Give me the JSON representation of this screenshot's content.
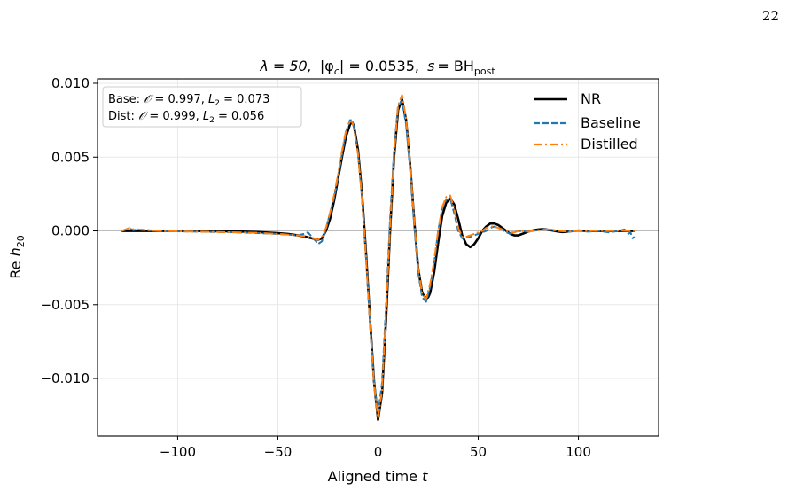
{
  "page_number": "22",
  "chart_data": {
    "type": "line",
    "title": "λ = 50, |φc| = 0.0535, s = BHpost",
    "title_parts": {
      "lambda": "λ = 50,",
      "phi": "|φ",
      "phi_sub": "c",
      "phi_rest": "| = 0.0535,",
      "s": "s",
      "s_rest": "= BH",
      "s_sub": "post"
    },
    "xlabel": "Aligned time t",
    "xlabel_parts": {
      "main": "Aligned time ",
      "var": "t"
    },
    "ylabel": "Re h20",
    "ylabel_parts": {
      "main": "Re ",
      "var": "h",
      "sub": "20"
    },
    "xlim": [
      -140,
      140
    ],
    "ylim": [
      -0.0139,
      0.0103
    ],
    "xticks": [
      -100,
      -50,
      0,
      50,
      100
    ],
    "xtick_labels": [
      "−100",
      "−50",
      "0",
      "50",
      "100"
    ],
    "yticks": [
      0.01,
      0.005,
      0.0,
      -0.005,
      -0.01
    ],
    "ytick_labels": [
      "0.010",
      "0.005",
      "0.000",
      "−0.005",
      "−0.010"
    ],
    "grid": true,
    "legend_position": "top-right",
    "metrics_box": {
      "lines": [
        "Base: 𝒪 = 0.997, L2 = 0.073",
        "Dist: 𝒪 = 0.999, L2 = 0.056"
      ],
      "parts": [
        {
          "prefix": "Base: ",
          "O": "𝒪",
          "o_val": " = 0.997, ",
          "L": "L",
          "L_sub": "2",
          "l_val": " = 0.073"
        },
        {
          "prefix": "Dist: ",
          "O": "𝒪",
          "o_val": " = 0.999, ",
          "L": "L",
          "L_sub": "2",
          "l_val": " = 0.056"
        }
      ]
    },
    "colors": {
      "NR": "#000000",
      "Baseline": "#1f77b4",
      "Distilled": "#ff7f0e"
    },
    "series": [
      {
        "name": "NR",
        "style": "solid",
        "x": [
          -128,
          -120,
          -110,
          -100,
          -90,
          -80,
          -70,
          -60,
          -50,
          -45,
          -40,
          -36,
          -33,
          -30,
          -28,
          -26,
          -24,
          -22,
          -20,
          -18,
          -16,
          -14,
          -13,
          -12,
          -10,
          -8,
          -6,
          -4,
          -2,
          0,
          2,
          4,
          6,
          8,
          10,
          12,
          14,
          16,
          18,
          20,
          22,
          24,
          25,
          26,
          28,
          30,
          32,
          34,
          36,
          38,
          40,
          42,
          44,
          46,
          48,
          50,
          52,
          54,
          56,
          58,
          60,
          62,
          64,
          66,
          68,
          70,
          72,
          74,
          76,
          78,
          80,
          82,
          84,
          86,
          88,
          90,
          92,
          94,
          96,
          98,
          100,
          105,
          110,
          115,
          120,
          125,
          128
        ],
        "y": [
          0.0,
          0.0,
          0.0,
          0.0,
          0.0,
          -2e-05,
          -4e-05,
          -8e-05,
          -0.00015,
          -0.0002,
          -0.0003,
          -0.0004,
          -0.0005,
          -0.0006,
          -0.0005,
          0.0,
          0.0008,
          0.002,
          0.0035,
          0.005,
          0.0064,
          0.0072,
          0.0074,
          0.0071,
          0.0055,
          0.0025,
          -0.0015,
          -0.006,
          -0.0102,
          -0.0128,
          -0.011,
          -0.006,
          0.0,
          0.005,
          0.0082,
          0.0089,
          0.0075,
          0.0045,
          0.0008,
          -0.0025,
          -0.0042,
          -0.0046,
          -0.0045,
          -0.0042,
          -0.0028,
          -0.0008,
          0.001,
          0.0019,
          0.0022,
          0.0018,
          0.0008,
          -0.0003,
          -0.0009,
          -0.0011,
          -0.0009,
          -0.0005,
          0.0,
          0.0003,
          0.0005,
          0.0005,
          0.0004,
          0.0002,
          0.0,
          -0.0002,
          -0.0003,
          -0.0003,
          -0.0002,
          -0.0001,
          0.0,
          5e-05,
          0.0001,
          0.00012,
          0.0001,
          5e-05,
          0.0,
          -5e-05,
          -8e-05,
          -6e-05,
          -3e-05,
          0.0,
          2e-05,
          0.0,
          -1e-05,
          0.0,
          0.0,
          0.0,
          0.0
        ]
      },
      {
        "name": "Baseline",
        "style": "dashed",
        "x": [
          -128,
          -124,
          -122,
          -120,
          -110,
          -100,
          -90,
          -80,
          -70,
          -60,
          -50,
          -45,
          -40,
          -37,
          -35,
          -33,
          -31,
          -30,
          -28,
          -26,
          -24,
          -22,
          -20,
          -18,
          -16,
          -14,
          -13,
          -12,
          -10,
          -8,
          -6,
          -4,
          -2,
          0,
          2,
          4,
          6,
          8,
          10,
          12,
          14,
          16,
          18,
          20,
          22,
          24,
          26,
          28,
          30,
          32,
          34,
          36,
          38,
          40,
          42,
          44,
          46,
          48,
          50,
          52,
          54,
          56,
          58,
          60,
          62,
          64,
          66,
          68,
          70,
          75,
          80,
          85,
          90,
          95,
          100,
          105,
          110,
          115,
          120,
          123,
          125,
          126,
          127,
          128
        ],
        "y": [
          0.0,
          0.00015,
          5e-05,
          0.0001,
          0.0,
          -3e-05,
          -5e-05,
          -8e-05,
          -0.0001,
          -0.00015,
          -0.0002,
          -0.00025,
          -0.0003,
          -0.0002,
          -0.0001,
          -0.0004,
          -0.0007,
          -0.0009,
          -0.0007,
          0.0001,
          0.0012,
          0.0022,
          0.0036,
          0.0052,
          0.0067,
          0.0075,
          0.0075,
          0.007,
          0.0053,
          0.0022,
          -0.0018,
          -0.0062,
          -0.0102,
          -0.0124,
          -0.0103,
          -0.005,
          0.0008,
          0.0055,
          0.0085,
          0.0088,
          0.0072,
          0.0042,
          0.0005,
          -0.0028,
          -0.0045,
          -0.0048,
          -0.0038,
          -0.0022,
          0.0,
          0.0015,
          0.0021,
          0.0022,
          0.0012,
          0.0,
          -0.0005,
          -0.0004,
          -0.0004,
          -0.0003,
          -0.0002,
          -0.0001,
          0.0,
          0.0002,
          0.0003,
          0.0002,
          0.0001,
          -0.0001,
          -0.0002,
          -0.0001,
          0.0,
          -5e-05,
          5e-05,
          0.0001,
          0.0,
          -5e-05,
          0.0,
          -5e-05,
          0.0,
          -0.0001,
          0.0,
          0.0001,
          -0.0002,
          -0.0001,
          -0.0005,
          -0.0004
        ]
      },
      {
        "name": "Distilled",
        "style": "dashdot",
        "x": [
          -128,
          -124,
          -122,
          -120,
          -110,
          -100,
          -90,
          -80,
          -70,
          -60,
          -50,
          -45,
          -40,
          -35,
          -32,
          -30,
          -28,
          -26,
          -24,
          -22,
          -20,
          -18,
          -16,
          -14,
          -13,
          -12,
          -10,
          -8,
          -6,
          -4,
          -2,
          0,
          2,
          4,
          6,
          8,
          10,
          12,
          14,
          16,
          18,
          20,
          22,
          24,
          26,
          28,
          30,
          32,
          34,
          36,
          38,
          40,
          42,
          44,
          46,
          48,
          50,
          52,
          54,
          56,
          58,
          60,
          62,
          64,
          66,
          68,
          70,
          75,
          80,
          85,
          90,
          95,
          100,
          105,
          110,
          115,
          120,
          125,
          128
        ],
        "y": [
          0.0,
          0.0002,
          0.0001,
          0.0001,
          0.0,
          -3e-05,
          -5e-05,
          -7e-05,
          -0.0001,
          -0.00013,
          -0.0002,
          -0.00025,
          -0.0003,
          -0.0004,
          -0.0005,
          -0.0006,
          -0.0004,
          0.0002,
          0.0012,
          0.0024,
          0.0038,
          0.0054,
          0.0068,
          0.0074,
          0.0074,
          0.0069,
          0.0052,
          0.0022,
          -0.0018,
          -0.0062,
          -0.0104,
          -0.0127,
          -0.0108,
          -0.0055,
          0.0002,
          0.0052,
          0.0085,
          0.0092,
          0.0076,
          0.0045,
          0.0008,
          -0.0025,
          -0.0043,
          -0.0046,
          -0.0036,
          -0.002,
          0.0,
          0.0016,
          0.0023,
          0.0024,
          0.0015,
          0.0002,
          -0.0004,
          -0.0004,
          -0.0003,
          -0.0002,
          -0.0001,
          0.0,
          0.0002,
          0.0003,
          0.0003,
          0.0002,
          0.0001,
          0.0,
          -0.0001,
          -0.0001,
          0.0,
          -5e-05,
          5e-05,
          0.0001,
          0.0,
          -5e-05,
          0.0,
          0.0,
          0.0,
          0.0,
          3e-05,
          0.0,
          0.0
        ]
      }
    ]
  }
}
